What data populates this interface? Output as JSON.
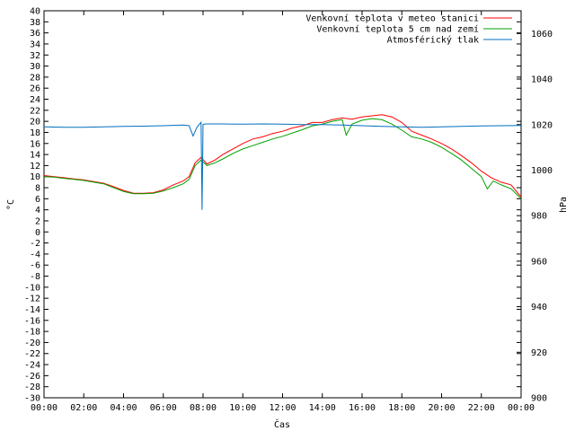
{
  "chart_data": {
    "type": "line",
    "xlabel": "Čas",
    "ylabel": "°C",
    "y2label": "hPa",
    "x_ticks": [
      "00:00",
      "02:00",
      "04:00",
      "06:00",
      "08:00",
      "10:00",
      "12:00",
      "14:00",
      "16:00",
      "18:00",
      "20:00",
      "22:00",
      "00:00"
    ],
    "xlim": [
      0,
      24
    ],
    "ylim": [
      -30,
      40
    ],
    "y_ticks": [
      -30,
      -28,
      -26,
      -24,
      -22,
      -20,
      -18,
      -16,
      -14,
      -12,
      -10,
      -8,
      -6,
      -4,
      -2,
      0,
      2,
      4,
      6,
      8,
      10,
      12,
      14,
      16,
      18,
      20,
      22,
      24,
      26,
      28,
      30,
      32,
      34,
      36,
      38,
      40
    ],
    "y2lim": [
      900,
      1070
    ],
    "y2_ticks": [
      900,
      920,
      940,
      960,
      980,
      1000,
      1020,
      1040,
      1060
    ],
    "grid": false,
    "legend_position": "top-right",
    "colors": {
      "red": "#ff0000",
      "green": "#00a000",
      "blue": "#0070c0"
    },
    "series": [
      {
        "name": "Venkovní teplota v meteo stanici",
        "axis": "y",
        "color": "#ff0000",
        "points": [
          [
            0,
            10.2
          ],
          [
            0.5,
            10.0
          ],
          [
            1,
            9.8
          ],
          [
            1.5,
            9.6
          ],
          [
            2,
            9.4
          ],
          [
            2.5,
            9.1
          ],
          [
            3,
            8.8
          ],
          [
            3.5,
            8.2
          ],
          [
            4,
            7.5
          ],
          [
            4.5,
            7.0
          ],
          [
            5,
            7.0
          ],
          [
            5.5,
            7.1
          ],
          [
            6,
            7.6
          ],
          [
            6.5,
            8.5
          ],
          [
            7,
            9.2
          ],
          [
            7.3,
            10.0
          ],
          [
            7.6,
            12.5
          ],
          [
            7.9,
            13.5
          ],
          [
            8.2,
            12.3
          ],
          [
            8.6,
            13.0
          ],
          [
            9,
            14.0
          ],
          [
            9.5,
            15.0
          ],
          [
            10,
            16.0
          ],
          [
            10.5,
            16.8
          ],
          [
            11,
            17.2
          ],
          [
            11.5,
            17.8
          ],
          [
            12,
            18.2
          ],
          [
            12.5,
            18.8
          ],
          [
            13,
            19.2
          ],
          [
            13.5,
            19.8
          ],
          [
            14,
            19.8
          ],
          [
            14.5,
            20.3
          ],
          [
            15,
            20.6
          ],
          [
            15.5,
            20.4
          ],
          [
            16,
            20.8
          ],
          [
            16.5,
            21.0
          ],
          [
            17,
            21.2
          ],
          [
            17.5,
            20.8
          ],
          [
            18,
            19.8
          ],
          [
            18.5,
            18.2
          ],
          [
            19,
            17.5
          ],
          [
            19.5,
            16.8
          ],
          [
            20,
            16.0
          ],
          [
            20.5,
            15.0
          ],
          [
            21,
            13.8
          ],
          [
            21.5,
            12.5
          ],
          [
            22,
            11.0
          ],
          [
            22.5,
            9.8
          ],
          [
            23,
            9.0
          ],
          [
            23.5,
            8.5
          ],
          [
            24,
            6.3
          ]
        ]
      },
      {
        "name": "Venkovní teplota 5 cm nad zemí",
        "axis": "y",
        "color": "#00a000",
        "points": [
          [
            0,
            10.0
          ],
          [
            0.5,
            9.9
          ],
          [
            1,
            9.7
          ],
          [
            1.5,
            9.5
          ],
          [
            2,
            9.3
          ],
          [
            2.5,
            9.0
          ],
          [
            3,
            8.7
          ],
          [
            3.5,
            8.0
          ],
          [
            4,
            7.3
          ],
          [
            4.5,
            6.9
          ],
          [
            5,
            6.9
          ],
          [
            5.5,
            7.0
          ],
          [
            6,
            7.4
          ],
          [
            6.5,
            8.0
          ],
          [
            7,
            8.7
          ],
          [
            7.3,
            9.5
          ],
          [
            7.6,
            12.0
          ],
          [
            7.9,
            13.0
          ],
          [
            8.2,
            12.0
          ],
          [
            8.6,
            12.5
          ],
          [
            9,
            13.2
          ],
          [
            9.5,
            14.2
          ],
          [
            10,
            15.0
          ],
          [
            10.5,
            15.6
          ],
          [
            11,
            16.2
          ],
          [
            11.5,
            16.8
          ],
          [
            12,
            17.3
          ],
          [
            12.5,
            17.9
          ],
          [
            13,
            18.5
          ],
          [
            13.5,
            19.2
          ],
          [
            14,
            19.5
          ],
          [
            14.5,
            20.0
          ],
          [
            15,
            20.3
          ],
          [
            15.2,
            17.5
          ],
          [
            15.5,
            19.5
          ],
          [
            16,
            20.2
          ],
          [
            16.5,
            20.5
          ],
          [
            17,
            20.3
          ],
          [
            17.5,
            19.5
          ],
          [
            18,
            18.4
          ],
          [
            18.5,
            17.2
          ],
          [
            19,
            16.8
          ],
          [
            19.5,
            16.2
          ],
          [
            20,
            15.3
          ],
          [
            20.5,
            14.2
          ],
          [
            21,
            13.0
          ],
          [
            21.5,
            11.5
          ],
          [
            22,
            10.0
          ],
          [
            22.3,
            7.8
          ],
          [
            22.6,
            9.2
          ],
          [
            23,
            8.5
          ],
          [
            23.5,
            7.8
          ],
          [
            24,
            6.0
          ]
        ]
      },
      {
        "name": "Atmosférický tlak",
        "axis": "y2",
        "color": "#0070c0",
        "points": [
          [
            0,
            1019.0
          ],
          [
            1,
            1018.8
          ],
          [
            2,
            1018.8
          ],
          [
            3,
            1019.0
          ],
          [
            4,
            1019.2
          ],
          [
            5,
            1019.3
          ],
          [
            6,
            1019.5
          ],
          [
            7,
            1019.8
          ],
          [
            7.3,
            1019.5
          ],
          [
            7.5,
            1015.0
          ],
          [
            7.7,
            1019.0
          ],
          [
            7.9,
            1021.0
          ],
          [
            7.95,
            982.5
          ],
          [
            8.0,
            1020.2
          ],
          [
            8.2,
            1020.3
          ],
          [
            9,
            1020.3
          ],
          [
            10,
            1020.2
          ],
          [
            11,
            1020.3
          ],
          [
            12,
            1020.2
          ],
          [
            13,
            1020.0
          ],
          [
            14,
            1020.0
          ],
          [
            15,
            1019.8
          ],
          [
            16,
            1019.5
          ],
          [
            17,
            1019.2
          ],
          [
            18,
            1019.0
          ],
          [
            19,
            1018.8
          ],
          [
            20,
            1019.0
          ],
          [
            21,
            1019.2
          ],
          [
            22,
            1019.4
          ],
          [
            23,
            1019.5
          ],
          [
            24,
            1019.6
          ]
        ]
      }
    ]
  }
}
